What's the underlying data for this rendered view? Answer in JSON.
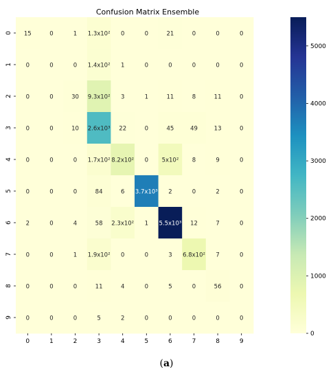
{
  "chart_data": {
    "type": "heatmap",
    "title": "Confusion Matrix Ensemble",
    "x_ticks": [
      "0",
      "1",
      "2",
      "3",
      "4",
      "5",
      "6",
      "7",
      "8",
      "9"
    ],
    "y_ticks": [
      "0",
      "1",
      "2",
      "3",
      "4",
      "5",
      "6",
      "7",
      "8",
      "9"
    ],
    "values": [
      [
        15,
        0,
        1,
        130,
        0,
        0,
        21,
        0,
        0,
        0
      ],
      [
        0,
        0,
        0,
        140,
        1,
        0,
        0,
        0,
        0,
        0
      ],
      [
        0,
        0,
        30,
        930,
        3,
        1,
        11,
        8,
        11,
        0
      ],
      [
        0,
        0,
        10,
        2600,
        22,
        0,
        45,
        49,
        13,
        0
      ],
      [
        0,
        0,
        0,
        170,
        820,
        0,
        500,
        8,
        9,
        0
      ],
      [
        0,
        0,
        0,
        84,
        6,
        3700,
        2,
        0,
        2,
        0
      ],
      [
        2,
        0,
        4,
        58,
        230,
        1,
        5500,
        12,
        7,
        0
      ],
      [
        0,
        0,
        1,
        190,
        0,
        0,
        3,
        680,
        7,
        0
      ],
      [
        0,
        0,
        0,
        11,
        4,
        0,
        5,
        0,
        56,
        0
      ],
      [
        0,
        0,
        0,
        5,
        2,
        0,
        0,
        0,
        0,
        0
      ]
    ],
    "cell_labels": [
      [
        "15",
        "0",
        "1",
        "1.3x10²",
        "0",
        "0",
        "21",
        "0",
        "0",
        "0"
      ],
      [
        "0",
        "0",
        "0",
        "1.4x10²",
        "1",
        "0",
        "0",
        "0",
        "0",
        "0"
      ],
      [
        "0",
        "0",
        "30",
        "9.3x10²",
        "3",
        "1",
        "11",
        "8",
        "11",
        "0"
      ],
      [
        "0",
        "0",
        "10",
        "2.6x10³",
        "22",
        "0",
        "45",
        "49",
        "13",
        "0"
      ],
      [
        "0",
        "0",
        "0",
        "1.7x10²",
        "8.2x10²",
        "0",
        "5x10²",
        "8",
        "9",
        "0"
      ],
      [
        "0",
        "0",
        "0",
        "84",
        "6",
        "3.7x10³",
        "2",
        "0",
        "2",
        "0"
      ],
      [
        "2",
        "0",
        "4",
        "58",
        "2.3x10²",
        "1",
        "5.5x10³",
        "12",
        "7",
        "0"
      ],
      [
        "0",
        "0",
        "1",
        "1.9x10²",
        "0",
        "0",
        "3",
        "6.8x10²",
        "7",
        "0"
      ],
      [
        "0",
        "0",
        "0",
        "11",
        "4",
        "0",
        "5",
        "0",
        "56",
        "0"
      ],
      [
        "0",
        "0",
        "0",
        "5",
        "2",
        "0",
        "0",
        "0",
        "0",
        "0"
      ]
    ],
    "colorbar": {
      "min": 0,
      "max": 5500,
      "ticks": [
        0,
        1000,
        2000,
        3000,
        4000,
        5000
      ],
      "colormap": "YlGnBu",
      "stops": [
        "#ffffd9",
        "#edf8b1",
        "#c7e9b4",
        "#7fcdbb",
        "#41b6c4",
        "#1d91c0",
        "#225ea8",
        "#253494",
        "#081d58"
      ]
    }
  },
  "caption": {
    "prefix": "(",
    "label": "a",
    "suffix": ")"
  }
}
